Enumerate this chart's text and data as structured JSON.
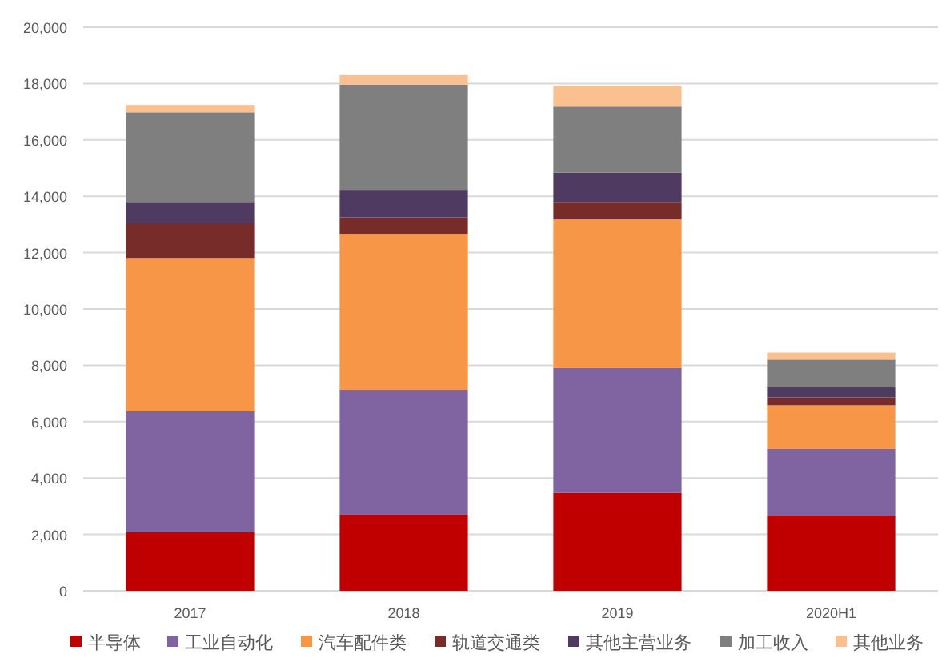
{
  "chart_data": {
    "type": "bar",
    "stacked": true,
    "categories": [
      "2017",
      "2018",
      "2019",
      "2020H1"
    ],
    "series": [
      {
        "name": "半导体",
        "color": "#c00000",
        "values": [
          2080,
          2700,
          3480,
          2670
        ]
      },
      {
        "name": "工业自动化",
        "color": "#8064a2",
        "values": [
          4290,
          4430,
          4420,
          2360
        ]
      },
      {
        "name": "汽车配件类",
        "color": "#f79646",
        "values": [
          5440,
          5540,
          5280,
          1550
        ]
      },
      {
        "name": "轨道交通类",
        "color": "#772c2a",
        "values": [
          1230,
          580,
          620,
          280
        ]
      },
      {
        "name": "其他主营业务",
        "color": "#4f3b62",
        "values": [
          760,
          980,
          1040,
          360
        ]
      },
      {
        "name": "加工收入",
        "color": "#7f7f7f",
        "values": [
          3180,
          3730,
          2340,
          980
        ]
      },
      {
        "name": "其他业务",
        "color": "#fac090",
        "values": [
          260,
          340,
          740,
          250
        ]
      }
    ],
    "ylim": [
      0,
      20000
    ],
    "yticks": [
      {
        "value": 0,
        "label": "0"
      },
      {
        "value": 2000,
        "label": "2,000"
      },
      {
        "value": 4000,
        "label": "4,000"
      },
      {
        "value": 6000,
        "label": "6,000"
      },
      {
        "value": 8000,
        "label": "8,000"
      },
      {
        "value": 10000,
        "label": "10,000"
      },
      {
        "value": 12000,
        "label": "12,000"
      },
      {
        "value": 14000,
        "label": "14,000"
      },
      {
        "value": 16000,
        "label": "16,000"
      },
      {
        "value": 18000,
        "label": "18,000"
      },
      {
        "value": 20000,
        "label": "20,000"
      }
    ],
    "grid": "y",
    "legend": "bottom"
  }
}
